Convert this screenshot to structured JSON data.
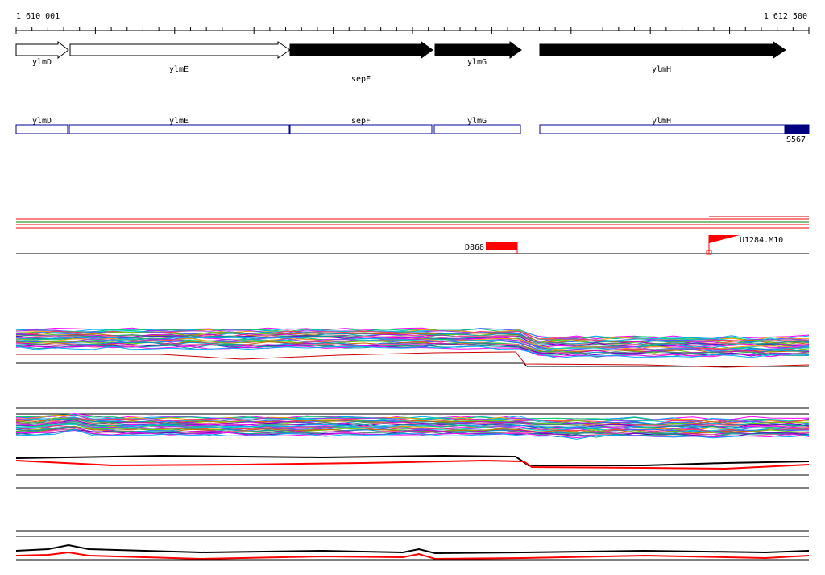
{
  "ruler": {
    "start_label": "1 610 001",
    "end_label": "1 612 500",
    "start_coord": 1610001,
    "end_coord": 1612500
  },
  "genes": [
    {
      "name": "ylmD",
      "start": 1610001,
      "end": 1610170,
      "fill": "white"
    },
    {
      "name": "ylmE",
      "start": 1610170,
      "end": 1610870,
      "fill": "white"
    },
    {
      "name": "sepF",
      "start": 1610870,
      "end": 1611320,
      "fill": "black"
    },
    {
      "name": "ylmG",
      "start": 1611330,
      "end": 1611600,
      "fill": "black"
    },
    {
      "name": "ylmH",
      "start": 1611650,
      "end": 1612425,
      "fill": "black"
    }
  ],
  "regions": [
    {
      "name": "ylmD"
    },
    {
      "name": "ylmE"
    },
    {
      "name": "sepF"
    },
    {
      "name": "ylmG"
    },
    {
      "name": "ylmH"
    }
  ],
  "features": {
    "s567": {
      "label": "S567",
      "color": "#000080"
    },
    "d868": {
      "label": "D868",
      "color": "#ff0000"
    },
    "u1284": {
      "label": "U1284.M10",
      "color": "#ff0000"
    }
  },
  "colors": {
    "region_outline": "#000099",
    "transcript_red": "#ff0000",
    "transcript_green": "#008000"
  }
}
